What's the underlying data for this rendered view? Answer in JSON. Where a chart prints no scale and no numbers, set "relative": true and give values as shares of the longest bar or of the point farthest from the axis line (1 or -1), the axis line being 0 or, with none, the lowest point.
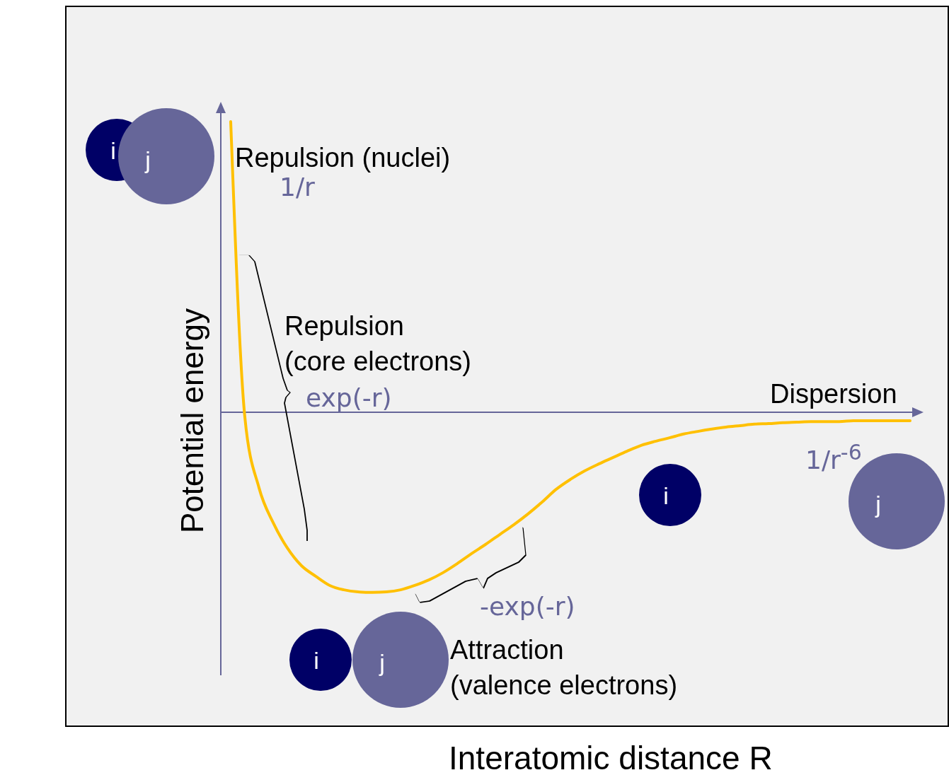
{
  "chart_data": {
    "type": "line",
    "relative": true,
    "xlabel": "Interatomic distance R",
    "ylabel": "Potential energy",
    "categories": [
      null,
      null,
      null,
      null,
      null,
      null,
      null,
      null,
      null,
      null,
      null,
      null,
      null,
      null,
      null,
      null,
      null,
      null,
      null,
      null,
      null,
      null,
      null,
      null,
      null,
      null,
      null,
      null,
      null,
      null,
      null,
      null,
      null,
      null,
      null,
      null,
      null,
      null,
      null,
      null,
      null,
      null,
      null,
      null,
      null,
      null,
      null,
      null,
      null
    ],
    "series": [
      {
        "color": "#ffc000",
        "values": [
          1.0,
          -0.017,
          -0.26,
          -0.38,
          -0.467,
          -0.528,
          -0.564,
          -0.596,
          -0.611,
          -0.618,
          -0.62,
          -0.618,
          -0.611,
          -0.596,
          -0.577,
          -0.552,
          -0.521,
          -0.487,
          -0.455,
          -0.421,
          -0.387,
          -0.35,
          -0.309,
          -0.265,
          -0.231,
          -0.202,
          -0.178,
          -0.156,
          -0.134,
          -0.114,
          -0.1,
          -0.088,
          -0.075,
          -0.066,
          -0.058,
          -0.051,
          -0.046,
          -0.041,
          -0.039,
          -0.036,
          -0.034,
          -0.032,
          -0.032,
          -0.032,
          -0.029,
          -0.029,
          -0.029,
          -0.029,
          -0.029
        ]
      }
    ],
    "annotations": [
      "Repulsion (nuclei)",
      "1/r",
      "Repulsion\n(core electrons)",
      "exp(-r)",
      "Dispersion",
      "1/r$^{-6}$",
      "-exp(-r)",
      "Attraction\n(valence electrons)",
      "i",
      "j",
      "i",
      "j",
      "i",
      "j"
    ],
    "ref_lines": [
      {
        "axis": "y",
        "value": 0,
        "color": "#666699"
      }
    ],
    "grid": false,
    "legend": false,
    "marker": "none",
    "line_style": "solid"
  }
}
